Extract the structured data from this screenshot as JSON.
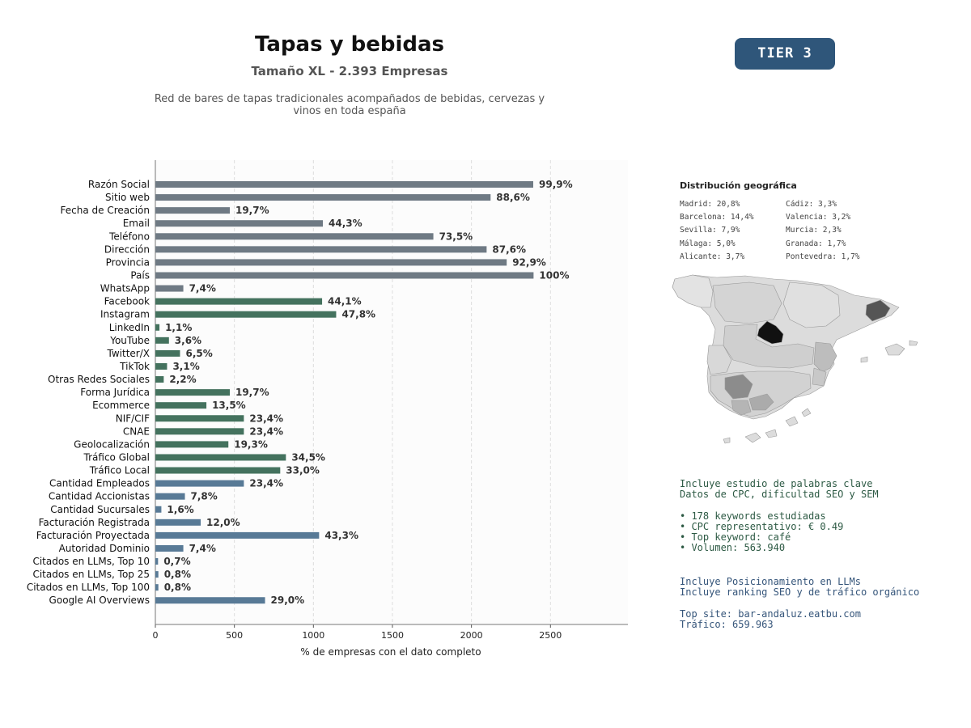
{
  "header": {
    "title": "Tapas y bebidas",
    "subtitle": "Tamaño XL - 2.393 Empresas",
    "description_line1": "Red de bares de tapas tradicionales acompañados de bebidas, cervezas y",
    "description_line2": "vinos en toda españa",
    "tier_badge": "TIER 3"
  },
  "chart_data": {
    "type": "bar",
    "orientation": "horizontal",
    "xlabel": "% de empresas con el dato completo",
    "xlim": [
      0,
      2990
    ],
    "xticks": [
      0,
      500,
      1000,
      1500,
      2000,
      2500
    ],
    "grid": "vertical-dashed",
    "colors": {
      "identity": "#6f7a84",
      "social": "#44725e",
      "business": "#587a96"
    },
    "bars": [
      {
        "label": "Razón Social",
        "value": 2391,
        "pct": "99,9%",
        "group": "identity"
      },
      {
        "label": "Sitio web",
        "value": 2121,
        "pct": "88,6%",
        "group": "identity"
      },
      {
        "label": "Fecha de Creación",
        "value": 471,
        "pct": "19,7%",
        "group": "identity"
      },
      {
        "label": "Email",
        "value": 1060,
        "pct": "44,3%",
        "group": "identity"
      },
      {
        "label": "Teléfono",
        "value": 1759,
        "pct": "73,5%",
        "group": "identity"
      },
      {
        "label": "Dirección",
        "value": 2096,
        "pct": "87,6%",
        "group": "identity"
      },
      {
        "label": "Provincia",
        "value": 2223,
        "pct": "92,9%",
        "group": "identity"
      },
      {
        "label": "País",
        "value": 2393,
        "pct": "100%",
        "group": "identity"
      },
      {
        "label": "WhatsApp",
        "value": 177,
        "pct": "7,4%",
        "group": "identity"
      },
      {
        "label": "Facebook",
        "value": 1055,
        "pct": "44,1%",
        "group": "social"
      },
      {
        "label": "Instagram",
        "value": 1144,
        "pct": "47,8%",
        "group": "social"
      },
      {
        "label": "LinkedIn",
        "value": 26,
        "pct": "1,1%",
        "group": "social"
      },
      {
        "label": "YouTube",
        "value": 86,
        "pct": "3,6%",
        "group": "social"
      },
      {
        "label": "Twitter/X",
        "value": 156,
        "pct": "6,5%",
        "group": "social"
      },
      {
        "label": "TikTok",
        "value": 74,
        "pct": "3,1%",
        "group": "social"
      },
      {
        "label": "Otras Redes Sociales",
        "value": 53,
        "pct": "2,2%",
        "group": "social"
      },
      {
        "label": "Forma Jurídica",
        "value": 471,
        "pct": "19,7%",
        "group": "social"
      },
      {
        "label": "Ecommerce",
        "value": 323,
        "pct": "13,5%",
        "group": "social"
      },
      {
        "label": "NIF/CIF",
        "value": 560,
        "pct": "23,4%",
        "group": "social"
      },
      {
        "label": "CNAE",
        "value": 560,
        "pct": "23,4%",
        "group": "social"
      },
      {
        "label": "Geolocalización",
        "value": 462,
        "pct": "19,3%",
        "group": "social"
      },
      {
        "label": "Tráfico Global",
        "value": 826,
        "pct": "34,5%",
        "group": "social"
      },
      {
        "label": "Tráfico Local",
        "value": 790,
        "pct": "33,0%",
        "group": "social"
      },
      {
        "label": "Cantidad Empleados",
        "value": 560,
        "pct": "23,4%",
        "group": "business"
      },
      {
        "label": "Cantidad Accionistas",
        "value": 187,
        "pct": "7,8%",
        "group": "business"
      },
      {
        "label": "Cantidad Sucursales",
        "value": 38,
        "pct": "1,6%",
        "group": "business"
      },
      {
        "label": "Facturación Registrada",
        "value": 287,
        "pct": "12,0%",
        "group": "business"
      },
      {
        "label": "Facturación Proyectada",
        "value": 1036,
        "pct": "43,3%",
        "group": "business"
      },
      {
        "label": "Autoridad Dominio",
        "value": 177,
        "pct": "7,4%",
        "group": "business"
      },
      {
        "label": "Citados en LLMs, Top 10",
        "value": 17,
        "pct": "0,7%",
        "group": "business"
      },
      {
        "label": "Citados en LLMs, Top 25",
        "value": 19,
        "pct": "0,8%",
        "group": "business"
      },
      {
        "label": "Citados en LLMs, Top 100",
        "value": 19,
        "pct": "0,8%",
        "group": "business"
      },
      {
        "label": "Google AI Overviews",
        "value": 694,
        "pct": "29,0%",
        "group": "business"
      }
    ]
  },
  "geo": {
    "title": "Distribución geográfica",
    "left": [
      "Madrid: 20,8%",
      "Barcelona: 14,4%",
      "Sevilla: 7,9%",
      "Málaga: 5,0%",
      "Alicante: 3,7%"
    ],
    "right": [
      "Cádiz: 3,3%",
      "Valencia: 3,2%",
      "Murcia: 2,3%",
      "Granada: 1,7%",
      "Pontevedra: 1,7%"
    ]
  },
  "keywords": {
    "line1": "Incluye estudio de palabras clave",
    "line2": "Datos de CPC, dificultad SEO y SEM",
    "bullets": [
      "• 178 keywords estudiadas",
      "• CPC representativo: € 0.49",
      "• Top keyword: café",
      "• Volumen: 563.940"
    ]
  },
  "llm": {
    "line1": "Incluye Posicionamiento en LLMs",
    "line2": "Incluye ranking SEO y de tráfico orgánico",
    "top_site": "Top site: bar-andaluz.eatbu.com",
    "traffic": "Tráfico: 659.963"
  }
}
